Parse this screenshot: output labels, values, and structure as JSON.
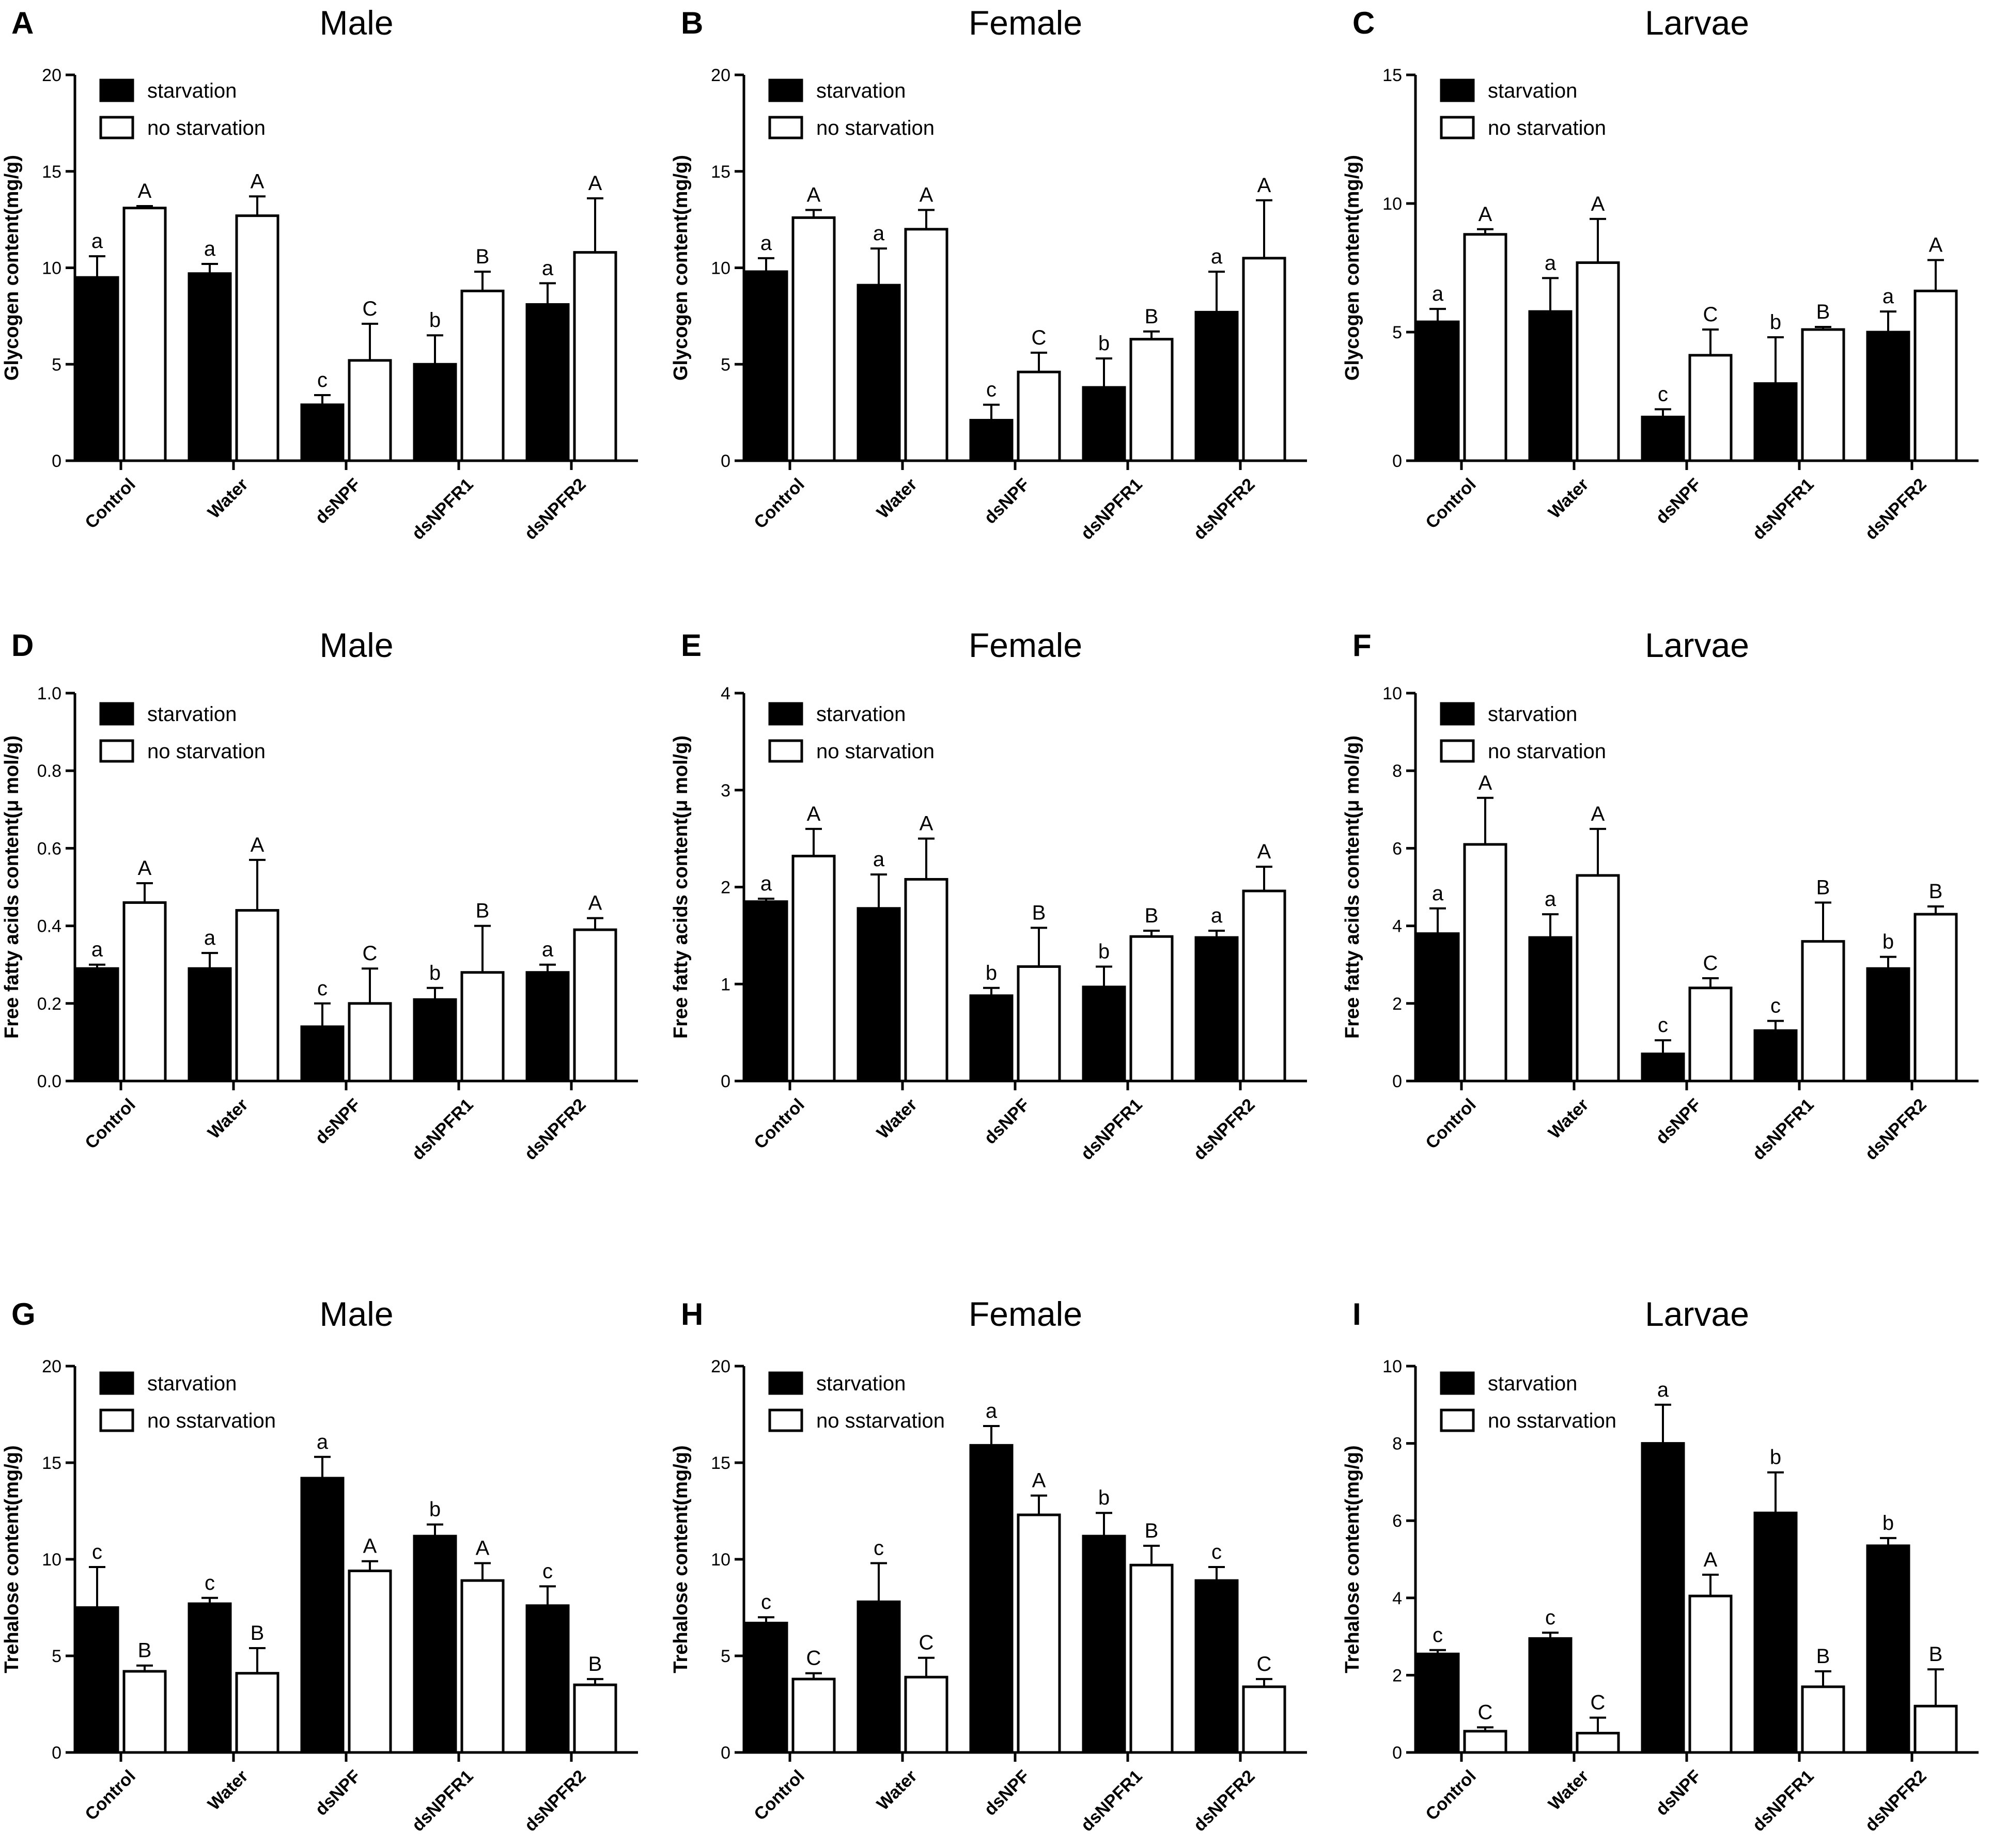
{
  "chart_data": [
    {
      "panel": "A",
      "title": "Male",
      "type": "bar",
      "ylabel": "Glycogen content(mg/g)",
      "ylim": [
        0,
        20
      ],
      "yticks": [
        0,
        5,
        10,
        15,
        20
      ],
      "categories": [
        "Control",
        "Water",
        "dsNPF",
        "dsNPFR1",
        "dsNPFR2"
      ],
      "series": [
        {
          "name": "starvation",
          "values": [
            9.5,
            9.7,
            2.9,
            5.0,
            8.1
          ],
          "errors": [
            1.1,
            0.5,
            0.5,
            1.5,
            1.1
          ],
          "labels": [
            "a",
            "a",
            "c",
            "b",
            "a"
          ]
        },
        {
          "name": "no starvation",
          "values": [
            13.1,
            12.7,
            5.2,
            8.8,
            10.8
          ],
          "errors": [
            0.1,
            1.0,
            1.9,
            1.0,
            2.8
          ],
          "labels": [
            "A",
            "A",
            "C",
            "B",
            "A"
          ]
        }
      ]
    },
    {
      "panel": "B",
      "title": "Female",
      "type": "bar",
      "ylabel": "Glycogen content(mg/g)",
      "ylim": [
        0,
        20
      ],
      "yticks": [
        0,
        5,
        10,
        15,
        20
      ],
      "categories": [
        "Control",
        "Water",
        "dsNPF",
        "dsNPFR1",
        "dsNPFR2"
      ],
      "series": [
        {
          "name": "starvation",
          "values": [
            9.8,
            9.1,
            2.1,
            3.8,
            7.7
          ],
          "errors": [
            0.7,
            1.9,
            0.8,
            1.5,
            2.1
          ],
          "labels": [
            "a",
            "a",
            "c",
            "b",
            "a"
          ]
        },
        {
          "name": "no starvation",
          "values": [
            12.6,
            12.0,
            4.6,
            6.3,
            10.5
          ],
          "errors": [
            0.4,
            1.0,
            1.0,
            0.4,
            3.0
          ],
          "labels": [
            "A",
            "A",
            "C",
            "B",
            "A"
          ]
        }
      ]
    },
    {
      "panel": "C",
      "title": "Larvae",
      "type": "bar",
      "ylabel": "Glycogen content(mg/g)",
      "ylim": [
        0,
        15
      ],
      "yticks": [
        0,
        5,
        10,
        15
      ],
      "categories": [
        "Control",
        "Water",
        "dsNPF",
        "dsNPFR1",
        "dsNPFR2"
      ],
      "series": [
        {
          "name": "starvation",
          "values": [
            5.4,
            5.8,
            1.7,
            3.0,
            5.0
          ],
          "errors": [
            0.5,
            1.3,
            0.3,
            1.8,
            0.8
          ],
          "labels": [
            "a",
            "a",
            "c",
            "b",
            "a"
          ]
        },
        {
          "name": "no starvation",
          "values": [
            8.8,
            7.7,
            4.1,
            5.1,
            6.6
          ],
          "errors": [
            0.2,
            1.7,
            1.0,
            0.1,
            1.2
          ],
          "labels": [
            "A",
            "A",
            "C",
            "B",
            "A"
          ]
        }
      ]
    },
    {
      "panel": "D",
      "title": "Male",
      "type": "bar",
      "ylabel": "Free fatty acids content(μ mol/g)",
      "ylim": [
        0,
        1.0
      ],
      "yticks": [
        "0.0",
        "0.2",
        "0.4",
        "0.6",
        "0.8",
        "1.0"
      ],
      "categories": [
        "Control",
        "Water",
        "dsNPF",
        "dsNPFR1",
        "dsNPFR2"
      ],
      "series": [
        {
          "name": "starvation",
          "values": [
            0.29,
            0.29,
            0.14,
            0.21,
            0.28
          ],
          "errors": [
            0.01,
            0.04,
            0.06,
            0.03,
            0.02
          ],
          "labels": [
            "a",
            "a",
            "c",
            "b",
            "a"
          ]
        },
        {
          "name": "no starvation",
          "values": [
            0.46,
            0.44,
            0.2,
            0.28,
            0.39
          ],
          "errors": [
            0.05,
            0.13,
            0.09,
            0.12,
            0.03
          ],
          "labels": [
            "A",
            "A",
            "C",
            "B",
            "A"
          ]
        }
      ]
    },
    {
      "panel": "E",
      "title": "Female",
      "type": "bar",
      "ylabel": "Free fatty acids content(μ mol/g)",
      "ylim": [
        0,
        4
      ],
      "yticks": [
        0,
        1,
        2,
        3,
        4
      ],
      "categories": [
        "Control",
        "Water",
        "dsNPF",
        "dsNPFR1",
        "dsNPFR2"
      ],
      "series": [
        {
          "name": "starvation",
          "values": [
            1.85,
            1.78,
            0.88,
            0.97,
            1.48
          ],
          "errors": [
            0.03,
            0.35,
            0.08,
            0.21,
            0.07
          ],
          "labels": [
            "a",
            "a",
            "b",
            "b",
            "a"
          ]
        },
        {
          "name": "no starvation",
          "values": [
            2.32,
            2.08,
            1.18,
            1.49,
            1.96
          ],
          "errors": [
            0.28,
            0.42,
            0.4,
            0.06,
            0.25
          ],
          "labels": [
            "A",
            "A",
            "B",
            "B",
            "A"
          ]
        }
      ]
    },
    {
      "panel": "F",
      "title": "Larvae",
      "type": "bar",
      "ylabel": "Free fatty acids content(μ mol/g)",
      "ylim": [
        0,
        10
      ],
      "yticks": [
        0,
        2,
        4,
        6,
        8,
        10
      ],
      "categories": [
        "Control",
        "Water",
        "dsNPF",
        "dsNPFR1",
        "dsNPFR2"
      ],
      "series": [
        {
          "name": "starvation",
          "values": [
            3.8,
            3.7,
            0.7,
            1.3,
            2.9
          ],
          "errors": [
            0.65,
            0.6,
            0.35,
            0.25,
            0.3
          ],
          "labels": [
            "a",
            "a",
            "c",
            "c",
            "b"
          ]
        },
        {
          "name": "no starvation",
          "values": [
            6.1,
            5.3,
            2.4,
            3.6,
            4.3
          ],
          "errors": [
            1.2,
            1.2,
            0.25,
            1.0,
            0.2
          ],
          "labels": [
            "A",
            "A",
            "C",
            "B",
            "B"
          ]
        }
      ]
    },
    {
      "panel": "G",
      "title": "Male",
      "type": "bar",
      "ylabel": "Trehalose content(mg/g)",
      "ylim": [
        0,
        20
      ],
      "yticks": [
        0,
        5,
        10,
        15,
        20
      ],
      "categories": [
        "Control",
        "Water",
        "dsNPF",
        "dsNPFR1",
        "dsNPFR2"
      ],
      "series": [
        {
          "name": "starvation",
          "values": [
            7.5,
            7.7,
            14.2,
            11.2,
            7.6
          ],
          "errors": [
            2.1,
            0.3,
            1.1,
            0.6,
            1.0
          ],
          "labels": [
            "c",
            "c",
            "a",
            "b",
            "c"
          ]
        },
        {
          "name": "no sstarvation",
          "values": [
            4.2,
            4.1,
            9.4,
            8.9,
            3.5
          ],
          "errors": [
            0.3,
            1.3,
            0.5,
            0.9,
            0.3
          ],
          "labels": [
            "B",
            "B",
            "A",
            "A",
            "B"
          ]
        }
      ]
    },
    {
      "panel": "H",
      "title": "Female",
      "type": "bar",
      "ylabel": "Trehalose content(mg/g)",
      "ylim": [
        0,
        20
      ],
      "yticks": [
        0,
        5,
        10,
        15,
        20
      ],
      "categories": [
        "Control",
        "Water",
        "dsNPF",
        "dsNPFR1",
        "dsNPFR2"
      ],
      "series": [
        {
          "name": "starvation",
          "values": [
            6.7,
            7.8,
            15.9,
            11.2,
            8.9
          ],
          "errors": [
            0.3,
            2.0,
            1.0,
            1.2,
            0.7
          ],
          "labels": [
            "c",
            "c",
            "a",
            "b",
            "c"
          ]
        },
        {
          "name": "no sstarvation",
          "values": [
            3.8,
            3.9,
            12.3,
            9.7,
            3.4
          ],
          "errors": [
            0.3,
            1.0,
            1.0,
            1.0,
            0.4
          ],
          "labels": [
            "C",
            "C",
            "A",
            "B",
            "C"
          ]
        }
      ]
    },
    {
      "panel": "I",
      "title": "Larvae",
      "type": "bar",
      "ylabel": "Trehalose content(mg/g)",
      "ylim": [
        0,
        10
      ],
      "yticks": [
        0,
        2,
        4,
        6,
        8,
        10
      ],
      "categories": [
        "Control",
        "Water",
        "dsNPF",
        "dsNPFR1",
        "dsNPFR2"
      ],
      "series": [
        {
          "name": "starvation",
          "values": [
            2.55,
            2.95,
            8.0,
            6.2,
            5.35
          ],
          "errors": [
            0.1,
            0.15,
            1.0,
            1.05,
            0.2
          ],
          "labels": [
            "c",
            "c",
            "a",
            "b",
            "b"
          ]
        },
        {
          "name": "no sstarvation",
          "values": [
            0.55,
            0.5,
            4.05,
            1.7,
            1.2
          ],
          "errors": [
            0.1,
            0.4,
            0.55,
            0.4,
            0.95
          ],
          "labels": [
            "C",
            "C",
            "A",
            "B",
            "B"
          ]
        }
      ]
    }
  ]
}
